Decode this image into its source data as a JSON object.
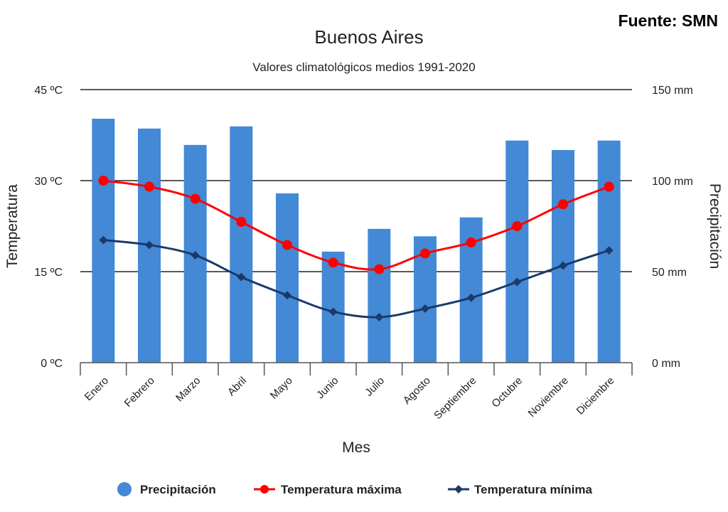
{
  "source": "Fuente: SMN",
  "chart_data": {
    "type": "bar+line",
    "title": "Buenos Aires",
    "subtitle": "Valores climatológicos medios 1991-2020",
    "xlabel": "Mes",
    "ylabel_left": "Temperatura",
    "ylabel_right": "Precipitación",
    "categories": [
      "Enero",
      "Febrero",
      "Marzo",
      "Abril",
      "Mayo",
      "Junio",
      "Julio",
      "Agosto",
      "Septiembre",
      "Octubre",
      "Noviembre",
      "Diciembre"
    ],
    "y_left": {
      "range": [
        0,
        45
      ],
      "ticks": [
        0,
        15,
        30,
        45
      ],
      "tick_labels": [
        "0 ºC",
        "15 ºC",
        "30 ºC",
        "45 ºC"
      ]
    },
    "y_right": {
      "range": [
        0,
        150
      ],
      "ticks": [
        0,
        50,
        100,
        150
      ],
      "tick_labels": [
        "0 mm",
        "50 mm",
        "100 mm",
        "150 mm"
      ]
    },
    "grid": true,
    "legend_position": "bottom",
    "series": [
      {
        "name": "Precipitación",
        "type": "bar",
        "axis": "right",
        "color": "#4389d6",
        "values": [
          134,
          128.6,
          119.6,
          129.8,
          93,
          61,
          73.5,
          69.4,
          79.8,
          122,
          116.8,
          122
        ]
      },
      {
        "name": "Temperatura máxima",
        "type": "line",
        "axis": "left",
        "marker": "circle",
        "color": "#ff0000",
        "values": [
          30.0,
          29.0,
          27.0,
          23.2,
          19.4,
          16.5,
          15.4,
          18.0,
          19.8,
          22.5,
          26.1,
          29.0
        ]
      },
      {
        "name": "Temperatura mínima",
        "type": "line",
        "axis": "left",
        "marker": "diamond",
        "color": "#1a3a6b",
        "values": [
          20.2,
          19.4,
          17.7,
          14.1,
          11.1,
          8.4,
          7.5,
          8.9,
          10.7,
          13.3,
          16.0,
          18.5
        ]
      }
    ]
  }
}
